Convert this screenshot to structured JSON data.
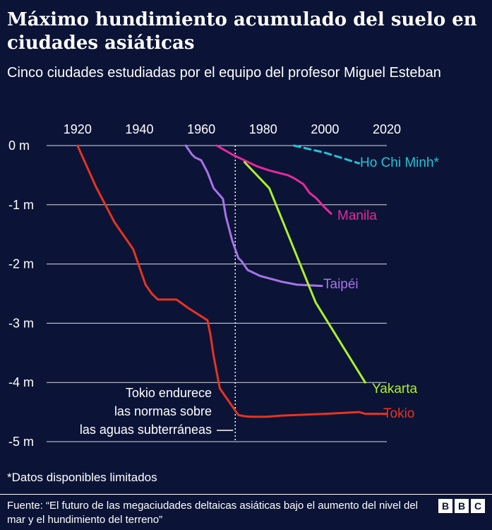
{
  "title": "Máximo hundimiento acumulado del suelo en ciudades asiáticas",
  "subtitle": "Cinco ciudades estudiadas por el equipo del profesor Miguel Esteban",
  "footnote": "*Datos disponibles limitados",
  "source": "Fuente: “El futuro de las megaciudades deltaicas asiáticas bajo el aumento del nivel del mar y el hundimiento del terreno”",
  "logo_letters": [
    "B",
    "B",
    "C"
  ],
  "chart_data": {
    "type": "line",
    "title": "Máximo hundimiento acumulado del suelo en ciudades asiáticas",
    "xlabel": "",
    "ylabel": "",
    "xlim": [
      1910,
      2020
    ],
    "ylim": [
      -5,
      0
    ],
    "x_ticks": [
      1920,
      1940,
      1960,
      1980,
      2000,
      2020
    ],
    "x_tick_labels": [
      "1920",
      "1940",
      "1960",
      "1980",
      "2000",
      "2020"
    ],
    "y_ticks": [
      0,
      -1,
      -2,
      -3,
      -4,
      -5
    ],
    "y_tick_labels": [
      "0 m",
      "-1 m",
      "-2 m",
      "-3 m",
      "-4 m",
      "-5 m"
    ],
    "annotation": {
      "year": 1971,
      "lines": [
        "Tokio endurece",
        "las normas sobre",
        "las aguas subterráneas"
      ]
    },
    "series": [
      {
        "name": "Tokio",
        "color": "#e8331f",
        "dashed": false,
        "x": [
          1920,
          1926,
          1932,
          1938,
          1942,
          1944,
          1946,
          1952,
          1956,
          1962,
          1963,
          1964,
          1966,
          1968,
          1970,
          1972,
          1974,
          1976,
          1981,
          1986,
          2000,
          2011,
          2013,
          2020
        ],
        "y": [
          0,
          -0.7,
          -1.3,
          -1.75,
          -2.35,
          -2.5,
          -2.6,
          -2.6,
          -2.75,
          -2.95,
          -3.2,
          -3.55,
          -4.1,
          -4.25,
          -4.4,
          -4.55,
          -4.57,
          -4.58,
          -4.58,
          -4.56,
          -4.53,
          -4.5,
          -4.53,
          -4.53
        ]
      },
      {
        "name": "Taipéi",
        "color": "#a873e8",
        "dashed": false,
        "x": [
          1955,
          1957,
          1958,
          1960,
          1962,
          1964,
          1967,
          1968,
          1970,
          1972,
          1973,
          1975,
          1979,
          1986,
          1991,
          1999
        ],
        "y": [
          0,
          -0.15,
          -0.2,
          -0.25,
          -0.45,
          -0.72,
          -0.9,
          -1.2,
          -1.6,
          -1.9,
          -1.95,
          -2.1,
          -2.2,
          -2.3,
          -2.35,
          -2.37
        ]
      },
      {
        "name": "Manila",
        "color": "#e6299c",
        "dashed": false,
        "x": [
          1965,
          1970,
          1978,
          1982,
          1988,
          1990,
          1993,
          1995,
          1997,
          2000,
          2002
        ],
        "y": [
          0,
          -0.15,
          -0.35,
          -0.42,
          -0.5,
          -0.55,
          -0.65,
          -0.8,
          -0.88,
          -1.05,
          -1.15
        ]
      },
      {
        "name": "Yakarta",
        "color": "#aef02b",
        "dashed": false,
        "x": [
          1974,
          1982,
          1997,
          2013
        ],
        "y": [
          -0.28,
          -0.72,
          -2.65,
          -4.0
        ]
      },
      {
        "name": "Ho Chi Minh*",
        "color": "#24c3d6",
        "dashed": true,
        "x": [
          1990,
          2000,
          2011
        ],
        "y": [
          0,
          -0.12,
          -0.3
        ]
      }
    ],
    "line_labels": [
      "Ho Chi Minh*",
      "Manila",
      "Taipéi",
      "Yakarta",
      "Tokio"
    ]
  }
}
